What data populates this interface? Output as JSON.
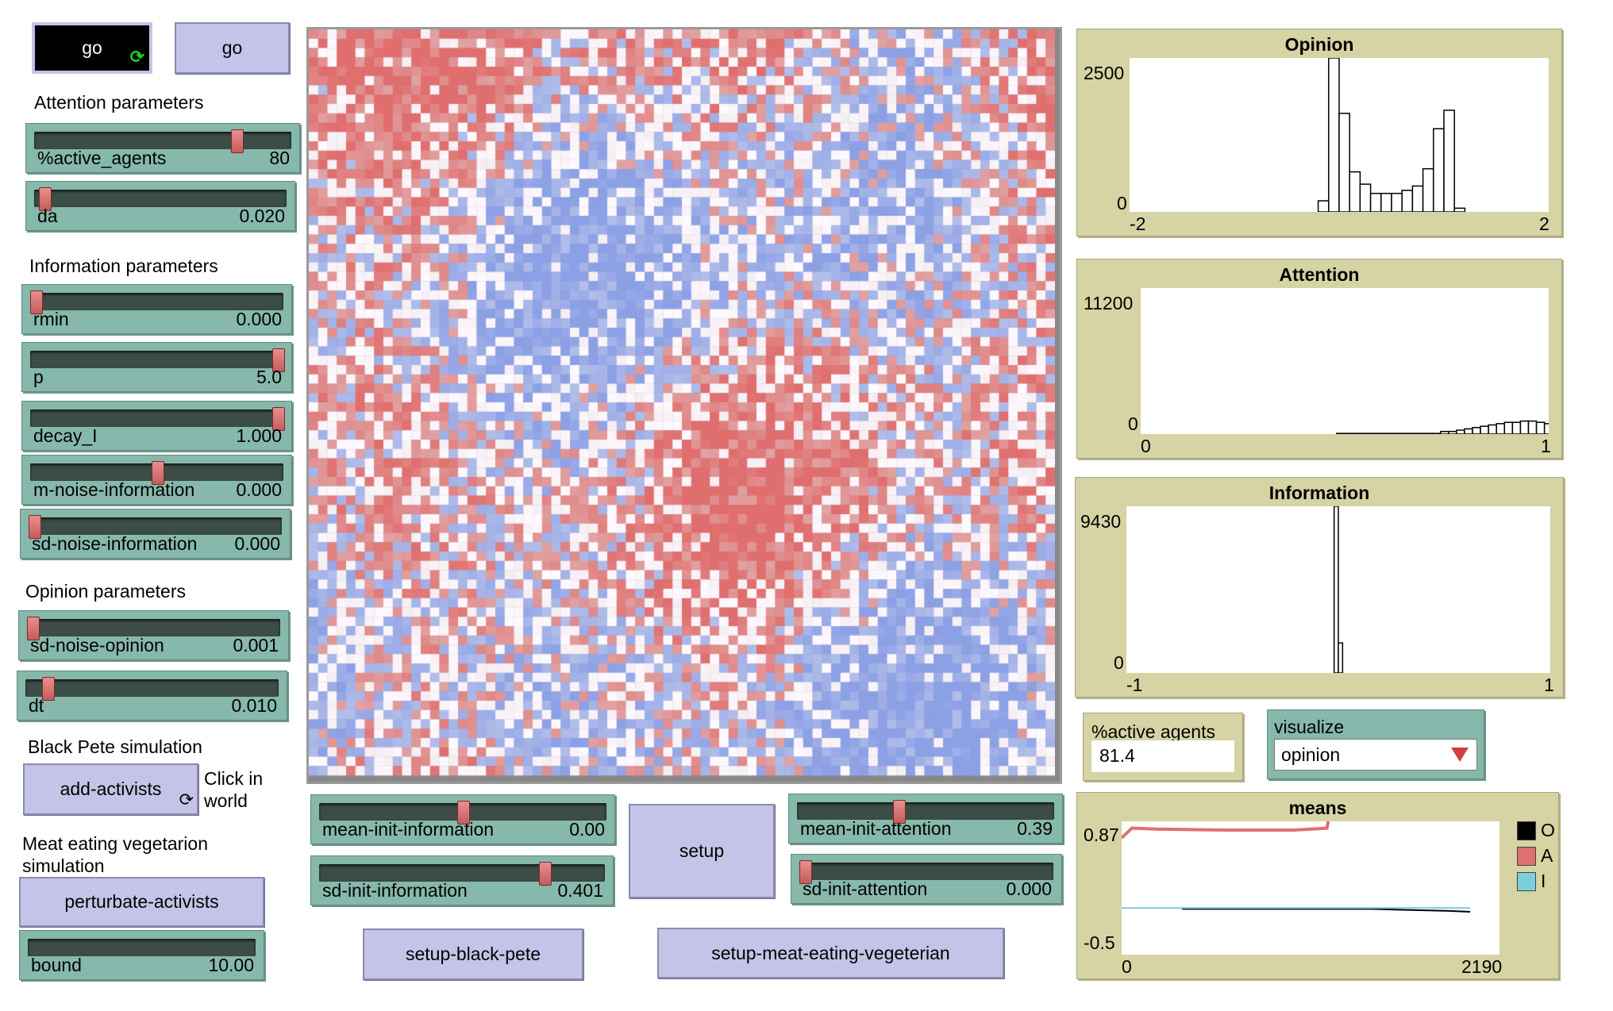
{
  "buttons": {
    "go_forever": "go",
    "go_once": "go",
    "add_activists": "add-activists",
    "perturbate_activists": "perturbate-activists",
    "setup": "setup",
    "setup_black_pete": "setup-black-pete",
    "setup_meat": "setup-meat-eating-vegeterian"
  },
  "notes": {
    "attention_params": "Attention parameters",
    "information_params": "Information parameters",
    "opinion_params": "Opinion parameters",
    "black_pete": "Black Pete simulation",
    "click_in": "Click in",
    "world": "world",
    "meat_line1": "Meat eating vegetarion",
    "meat_line2": "simulation"
  },
  "sliders": {
    "active_agents": {
      "name": "%active_agents",
      "value": "80",
      "fraction": 0.8
    },
    "da": {
      "name": "da",
      "value": "0.020",
      "fraction": 0.02
    },
    "rmin": {
      "name": "rmin",
      "value": "0.000",
      "fraction": 0.0
    },
    "p": {
      "name": "p",
      "value": "5.0",
      "fraction": 1.0
    },
    "decay_I": {
      "name": "decay_I",
      "value": "1.000",
      "fraction": 1.0
    },
    "m_noise_information": {
      "name": "m-noise-information",
      "value": "0.000",
      "fraction": 0.5
    },
    "sd_noise_information": {
      "name": "sd-noise-information",
      "value": "0.000",
      "fraction": 0.0
    },
    "sd_noise_opinion": {
      "name": "sd-noise-opinion",
      "value": "0.001",
      "fraction": 0.0
    },
    "dt": {
      "name": "dt",
      "value": "0.010",
      "fraction": 0.07
    },
    "bound": {
      "name": "bound",
      "value": "10.00",
      "fraction": 0.0
    },
    "mean_init_information": {
      "name": "mean-init-information",
      "value": "0.00",
      "fraction": 0.5
    },
    "sd_init_information": {
      "name": "sd-init-information",
      "value": "0.401",
      "fraction": 0.8
    },
    "mean_init_attention": {
      "name": "mean-init-attention",
      "value": "0.39",
      "fraction": 0.39
    },
    "sd_init_attention": {
      "name": "sd-init-attention",
      "value": "0.000",
      "fraction": 0.0
    }
  },
  "monitor": {
    "label": "%active agents",
    "value": "81.4"
  },
  "chooser": {
    "label": "visualize",
    "value": "opinion"
  },
  "chart_data": [
    {
      "type": "bar",
      "title": "Opinion",
      "xlim": [
        -2,
        2
      ],
      "ylim": [
        0,
        2500
      ],
      "x_tick_labels": [
        "-2",
        "2"
      ],
      "y_tick_labels": [
        "2500",
        "0"
      ],
      "bin_start": -0.2,
      "bin_width": 0.1,
      "values": [
        180,
        2500,
        1600,
        650,
        450,
        300,
        300,
        300,
        350,
        420,
        700,
        1350,
        1650,
        60
      ]
    },
    {
      "type": "bar",
      "title": "Attention",
      "xlim": [
        0,
        1
      ],
      "ylim": [
        0,
        11200
      ],
      "x_tick_labels": [
        "0",
        "1"
      ],
      "y_tick_labels": [
        "11200",
        "0"
      ],
      "bin_start": 0.48,
      "bin_width": 0.0196,
      "values": [
        50,
        50,
        50,
        50,
        50,
        50,
        50,
        50,
        50,
        50,
        50,
        50,
        50,
        200,
        200,
        300,
        400,
        500,
        600,
        700,
        800,
        900,
        900,
        1000,
        1000,
        900,
        800,
        800,
        600,
        500
      ]
    },
    {
      "type": "bar",
      "title": "Information",
      "xlim": [
        -1,
        1
      ],
      "ylim": [
        0,
        9430
      ],
      "x_tick_labels": [
        "-1",
        "1"
      ],
      "y_tick_labels": [
        "9430",
        "0"
      ],
      "bin_start": -0.02,
      "bin_width": 0.02,
      "values": [
        9430,
        1700
      ]
    },
    {
      "type": "line",
      "title": "means",
      "xlim": [
        0,
        2190
      ],
      "ylim": [
        -0.5,
        0.87
      ],
      "x_tick_labels": [
        "0",
        "2190"
      ],
      "y_tick_labels": [
        "0.87",
        "-0.5"
      ],
      "legend_position": "right",
      "series": [
        {
          "name": "O",
          "color": "#000000",
          "x": [
            350,
            1050,
            1450,
            1650,
            1900,
            2020
          ],
          "y": [
            -0.03,
            -0.03,
            -0.03,
            -0.04,
            -0.05,
            -0.06
          ]
        },
        {
          "name": "A",
          "color": "#e07070",
          "x": [
            0,
            60,
            200,
            600,
            1000,
            1190,
            1200,
            1210,
            1600,
            2020
          ],
          "y": [
            0.7,
            0.8,
            0.79,
            0.78,
            0.78,
            0.8,
            0.9,
            0.93,
            0.93,
            0.93
          ]
        },
        {
          "name": "I",
          "color": "#7ad0d8",
          "x": [
            0,
            2020
          ],
          "y": [
            -0.02,
            -0.02
          ]
        }
      ]
    }
  ]
}
